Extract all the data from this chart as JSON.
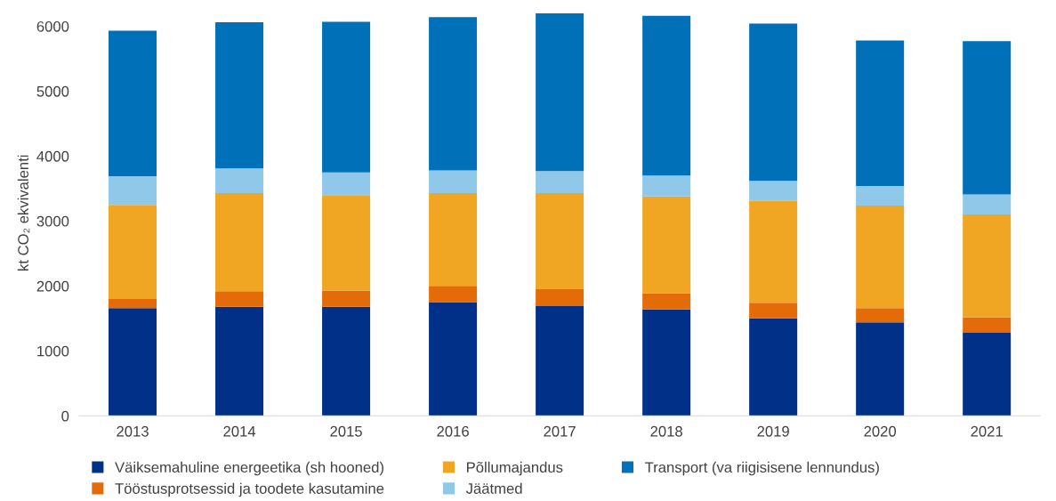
{
  "chart_data": {
    "type": "bar",
    "stacked": true,
    "ylabel": "kt CO₂ ekvivalenti",
    "categories": [
      "2013",
      "2014",
      "2015",
      "2016",
      "2017",
      "2018",
      "2019",
      "2020",
      "2021"
    ],
    "series": [
      {
        "name": "Väiksemahuline energeetika (sh hooned)",
        "color": "#003087",
        "values": [
          1660,
          1680,
          1680,
          1750,
          1690,
          1640,
          1500,
          1440,
          1280
        ]
      },
      {
        "name": "Tööstusprotsessid ja toodete kasutamine",
        "color": "#e36c09",
        "values": [
          140,
          240,
          250,
          250,
          260,
          250,
          240,
          220,
          240
        ]
      },
      {
        "name": "Põllumajandus",
        "color": "#f0a523",
        "values": [
          1450,
          1510,
          1470,
          1430,
          1480,
          1490,
          1570,
          1580,
          1580
        ]
      },
      {
        "name": "Jäätmed",
        "color": "#8fc8e8",
        "values": [
          440,
          380,
          350,
          350,
          340,
          320,
          310,
          300,
          310
        ]
      },
      {
        "name": "Transport (va riigisisene lennundus)",
        "color": "#0070b8",
        "values": [
          2240,
          2250,
          2320,
          2360,
          2430,
          2460,
          2420,
          2240,
          2360
        ]
      }
    ],
    "ylim": [
      0,
      6250
    ],
    "yticks": [
      0,
      1000,
      2000,
      3000,
      4000,
      5000,
      6000
    ],
    "grid": false,
    "legend": "bottom"
  }
}
